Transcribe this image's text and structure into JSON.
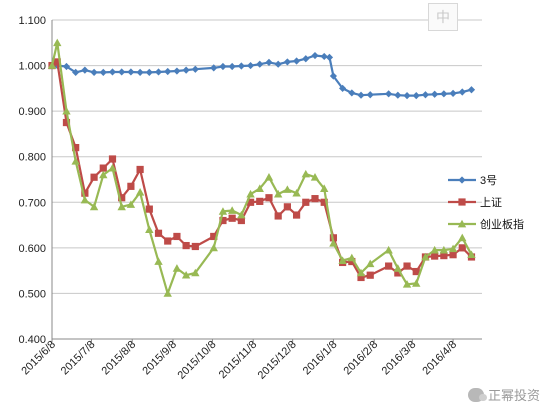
{
  "ime_badge": "中",
  "watermark": "正幂投资",
  "chart_data": {
    "type": "line",
    "ylim": [
      0.4,
      1.1
    ],
    "yticks": [
      "0.400",
      "0.500",
      "0.600",
      "0.700",
      "0.800",
      "0.900",
      "1.000",
      "1.100"
    ],
    "x_tick_labels": [
      "2015/6/8",
      "2015/7/8",
      "2015/8/8",
      "2015/9/8",
      "2015/10/8",
      "2015/11/8",
      "2015/12/8",
      "2016/1/8",
      "2016/2/8",
      "2016/3/8",
      "2016/4/8"
    ],
    "x_tick_dates": [
      "2015-06-08",
      "2015-07-08",
      "2015-08-08",
      "2015-09-08",
      "2015-10-08",
      "2015-11-08",
      "2015-12-08",
      "2016-01-08",
      "2016-02-08",
      "2016-03-08",
      "2016-04-08"
    ],
    "xlim": [
      "2015-06-08",
      "2016-04-30"
    ],
    "grid": "horizontal",
    "legend_position": "right",
    "series": [
      {
        "name": "3号",
        "color": "#4a7ebb",
        "marker": "diamond",
        "x": [
          "2015-06-08",
          "2015-06-12",
          "2015-06-19",
          "2015-06-26",
          "2015-07-03",
          "2015-07-10",
          "2015-07-17",
          "2015-07-24",
          "2015-07-31",
          "2015-08-07",
          "2015-08-14",
          "2015-08-21",
          "2015-08-28",
          "2015-09-04",
          "2015-09-11",
          "2015-09-18",
          "2015-09-25",
          "2015-10-09",
          "2015-10-16",
          "2015-10-23",
          "2015-10-30",
          "2015-11-06",
          "2015-11-13",
          "2015-11-20",
          "2015-11-27",
          "2015-12-04",
          "2015-12-11",
          "2015-12-18",
          "2015-12-25",
          "2016-01-01",
          "2016-01-05",
          "2016-01-08",
          "2016-01-15",
          "2016-01-22",
          "2016-01-29",
          "2016-02-05",
          "2016-02-19",
          "2016-02-26",
          "2016-03-04",
          "2016-03-11",
          "2016-03-18",
          "2016-03-25",
          "2016-04-01",
          "2016-04-08",
          "2016-04-15",
          "2016-04-22"
        ],
        "y": [
          1.0,
          1.0,
          0.998,
          0.985,
          0.99,
          0.985,
          0.985,
          0.986,
          0.986,
          0.986,
          0.985,
          0.985,
          0.986,
          0.987,
          0.988,
          0.99,
          0.992,
          0.995,
          0.998,
          0.998,
          0.999,
          1.0,
          1.003,
          1.007,
          1.003,
          1.008,
          1.01,
          1.015,
          1.022,
          1.02,
          1.018,
          0.977,
          0.95,
          0.94,
          0.935,
          0.936,
          0.938,
          0.935,
          0.934,
          0.934,
          0.936,
          0.937,
          0.938,
          0.939,
          0.942,
          0.947
        ]
      },
      {
        "name": "上证",
        "color": "#be4b48",
        "marker": "square",
        "x": [
          "2015-06-08",
          "2015-06-12",
          "2015-06-19",
          "2015-06-26",
          "2015-07-03",
          "2015-07-10",
          "2015-07-17",
          "2015-07-24",
          "2015-07-31",
          "2015-08-07",
          "2015-08-14",
          "2015-08-21",
          "2015-08-28",
          "2015-09-04",
          "2015-09-11",
          "2015-09-18",
          "2015-09-25",
          "2015-10-09",
          "2015-10-16",
          "2015-10-23",
          "2015-10-30",
          "2015-11-06",
          "2015-11-13",
          "2015-11-20",
          "2015-11-27",
          "2015-12-04",
          "2015-12-11",
          "2015-12-18",
          "2015-12-25",
          "2016-01-01",
          "2016-01-08",
          "2016-01-15",
          "2016-01-22",
          "2016-01-29",
          "2016-02-05",
          "2016-02-19",
          "2016-02-26",
          "2016-03-04",
          "2016-03-11",
          "2016-03-18",
          "2016-03-25",
          "2016-04-01",
          "2016-04-08",
          "2016-04-15",
          "2016-04-22"
        ],
        "y": [
          1.0,
          1.008,
          0.875,
          0.82,
          0.72,
          0.755,
          0.775,
          0.795,
          0.71,
          0.735,
          0.772,
          0.685,
          0.632,
          0.615,
          0.625,
          0.605,
          0.603,
          0.625,
          0.66,
          0.665,
          0.66,
          0.7,
          0.702,
          0.71,
          0.67,
          0.69,
          0.672,
          0.7,
          0.708,
          0.7,
          0.622,
          0.568,
          0.57,
          0.535,
          0.54,
          0.56,
          0.545,
          0.56,
          0.548,
          0.58,
          0.582,
          0.583,
          0.585,
          0.6,
          0.58
        ]
      },
      {
        "name": "创业板指",
        "color": "#98b954",
        "marker": "triangle",
        "x": [
          "2015-06-08",
          "2015-06-12",
          "2015-06-19",
          "2015-06-26",
          "2015-07-03",
          "2015-07-10",
          "2015-07-17",
          "2015-07-24",
          "2015-07-31",
          "2015-08-07",
          "2015-08-14",
          "2015-08-21",
          "2015-08-28",
          "2015-09-04",
          "2015-09-11",
          "2015-09-18",
          "2015-09-25",
          "2015-10-09",
          "2015-10-16",
          "2015-10-23",
          "2015-10-30",
          "2015-11-06",
          "2015-11-13",
          "2015-11-20",
          "2015-11-27",
          "2015-12-04",
          "2015-12-11",
          "2015-12-18",
          "2015-12-25",
          "2016-01-01",
          "2016-01-08",
          "2016-01-15",
          "2016-01-22",
          "2016-01-29",
          "2016-02-05",
          "2016-02-19",
          "2016-02-26",
          "2016-03-04",
          "2016-03-11",
          "2016-03-18",
          "2016-03-25",
          "2016-04-01",
          "2016-04-08",
          "2016-04-15",
          "2016-04-22"
        ],
        "y": [
          1.0,
          1.05,
          0.9,
          0.79,
          0.705,
          0.69,
          0.76,
          0.775,
          0.69,
          0.695,
          0.722,
          0.64,
          0.57,
          0.5,
          0.555,
          0.54,
          0.545,
          0.6,
          0.68,
          0.682,
          0.672,
          0.718,
          0.73,
          0.755,
          0.718,
          0.728,
          0.72,
          0.762,
          0.755,
          0.73,
          0.61,
          0.572,
          0.578,
          0.545,
          0.565,
          0.595,
          0.555,
          0.52,
          0.522,
          0.58,
          0.595,
          0.595,
          0.598,
          0.622,
          0.585
        ]
      }
    ]
  }
}
